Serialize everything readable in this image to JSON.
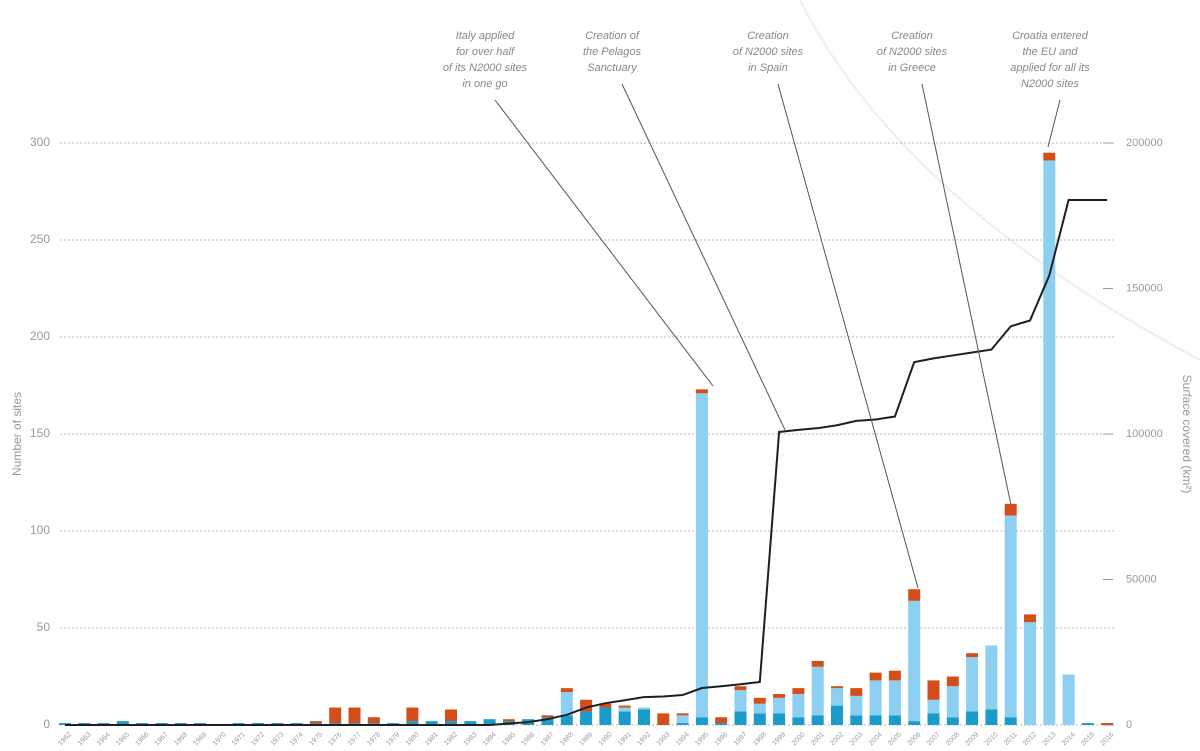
{
  "chart_data": {
    "type": "bar",
    "categories": [
      "1962",
      "1963",
      "1964",
      "1965",
      "1966",
      "1967",
      "1968",
      "1969",
      "1970",
      "1971",
      "1972",
      "1973",
      "1974",
      "1975",
      "1976",
      "1977",
      "1978",
      "1979",
      "1980",
      "1981",
      "1982",
      "1983",
      "1984",
      "1985",
      "1986",
      "1987",
      "1988",
      "1989",
      "1990",
      "1991",
      "1992",
      "1993",
      "1994",
      "1995",
      "1996",
      "1997",
      "1998",
      "1999",
      "2000",
      "2001",
      "2002",
      "2003",
      "2004",
      "2005",
      "2006",
      "2007",
      "2008",
      "2009",
      "2010",
      "2011",
      "2012",
      "2013",
      "2014",
      "2015",
      "2016"
    ],
    "series": [
      {
        "color": "#1b9bc9",
        "values": [
          1,
          1,
          1,
          2,
          1,
          1,
          1,
          1,
          0,
          1,
          1,
          1,
          1,
          1,
          1,
          1,
          1,
          1,
          2,
          2,
          2,
          2,
          3,
          2,
          3,
          4,
          5,
          7,
          9,
          7,
          8,
          0,
          1,
          4,
          1,
          7,
          6,
          6,
          4,
          5,
          10,
          5,
          5,
          5,
          2,
          6,
          4,
          7,
          8,
          4,
          0,
          0,
          0,
          1,
          0
        ]
      },
      {
        "color": "#8ccff0",
        "values": [
          0,
          0,
          0,
          0,
          0,
          0,
          0,
          0,
          0,
          0,
          0,
          0,
          0,
          0,
          0,
          0,
          0,
          0,
          0,
          0,
          0,
          0,
          0,
          0,
          0,
          0,
          12,
          0,
          0,
          2,
          1,
          0,
          4,
          167,
          0,
          11,
          5,
          8,
          12,
          25,
          9,
          10,
          18,
          18,
          62,
          7,
          16,
          28,
          33,
          104,
          53,
          291,
          26,
          0,
          0
        ]
      },
      {
        "color": "#d44e1c",
        "values": [
          0,
          0,
          0,
          0,
          0,
          0,
          0,
          0,
          0,
          0,
          0,
          0,
          0,
          1,
          8,
          8,
          3,
          0,
          7,
          0,
          6,
          0,
          0,
          1,
          0,
          1,
          2,
          6,
          2,
          1,
          0,
          6,
          1,
          2,
          3,
          2,
          3,
          2,
          3,
          3,
          1,
          4,
          4,
          5,
          6,
          10,
          5,
          2,
          0,
          6,
          4,
          4,
          0,
          0,
          1
        ]
      },
      {
        "type": "line",
        "axis": "y2",
        "color": "#1f1f1f",
        "values": [
          0,
          0,
          0,
          0,
          0,
          0,
          0,
          0,
          0,
          0,
          0,
          0,
          0,
          0,
          0,
          0,
          0,
          0,
          0,
          0,
          0,
          0,
          0,
          500,
          1000,
          2000,
          3500,
          6000,
          7500,
          8500,
          9600,
          9800,
          10300,
          12700,
          13300,
          14000,
          14800,
          100700,
          101400,
          102000,
          103000,
          104500,
          105000,
          106000,
          124700,
          126000,
          127000,
          128000,
          129000,
          137000,
          139000,
          154500,
          180400,
          180400,
          180400
        ]
      }
    ],
    "ylabel": "Number of sites",
    "y2label": "Surface covered (km²)",
    "ylim": [
      0,
      300
    ],
    "yticks": [
      0,
      50,
      100,
      150,
      200,
      250,
      300
    ],
    "y2lim": [
      0,
      200000
    ],
    "y2ticks": [
      0,
      50000,
      100000,
      150000,
      200000
    ],
    "grid": true,
    "annotations": [
      {
        "lines": [
          "Italy applied",
          "for over half",
          "of its N2000 sites",
          "in one go"
        ]
      },
      {
        "lines": [
          "Creation of",
          "the Pelagos",
          "Sanctuary"
        ]
      },
      {
        "lines": [
          "Creation",
          "of N2000 sites",
          "in Spain"
        ]
      },
      {
        "lines": [
          "Creation",
          "of N2000 sites",
          "in Greece"
        ]
      },
      {
        "lines": [
          "Croatia entered",
          "the EU and",
          "applied for all its",
          "N2000 sites"
        ]
      }
    ]
  }
}
